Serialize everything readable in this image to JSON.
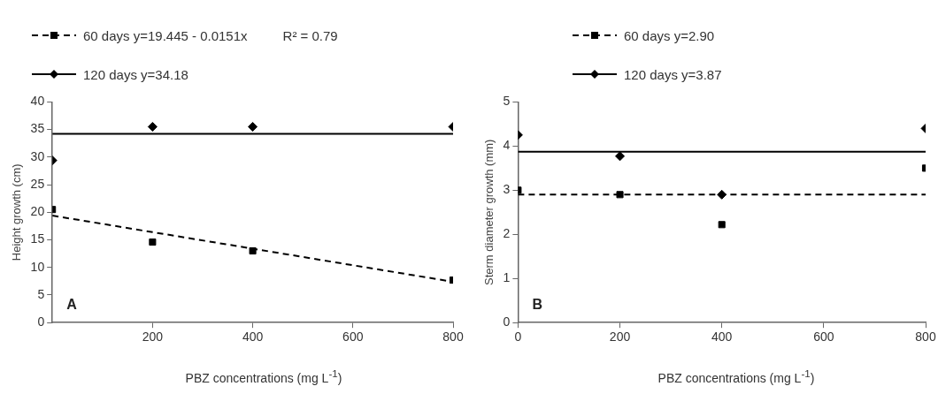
{
  "chart_data": [
    {
      "type": "scatter",
      "xlabel": "PBZ concentrations (mg L$^{-1}$)",
      "ylabel": "Height growth (cm)",
      "x": [
        0,
        200,
        400,
        800
      ],
      "xlim": [
        0,
        800
      ],
      "xticks": [
        200,
        400,
        600,
        800
      ],
      "ylim": [
        0,
        40
      ],
      "yticks": [
        0,
        5,
        10,
        15,
        20,
        25,
        30,
        35,
        40
      ],
      "grid": false,
      "legend": "top left",
      "series": [
        {
          "name": "60 days y=19.445 - 0.0151x",
          "type": "scatter",
          "marker": "square",
          "color": "#000000",
          "values": [
            20.5,
            14.6,
            13.0,
            7.7
          ]
        },
        {
          "type": "line",
          "line_style": "dashed",
          "color": "#000000",
          "values": [
            19.4,
            16.4,
            13.4,
            7.4
          ]
        },
        {
          "name": "120 days y=34.18",
          "type": "scatter",
          "marker": "diamond",
          "color": "#000000",
          "values": [
            29.4,
            35.5,
            35.5,
            35.5
          ]
        },
        {
          "type": "line",
          "line_style": "solid",
          "color": "#000000",
          "values": [
            34.2,
            34.2,
            34.2,
            34.2
          ]
        }
      ],
      "annotations": [
        "R² = 0.79",
        "A"
      ]
    },
    {
      "type": "scatter",
      "xlabel": "PBZ concentrations (mg L$^{-1}$)",
      "ylabel": "Sterm diameter growth (mm)",
      "x": [
        0,
        200,
        400,
        800
      ],
      "xlim": [
        0,
        800
      ],
      "xticks": [
        0,
        200,
        400,
        600,
        800
      ],
      "ylim": [
        0,
        5
      ],
      "yticks": [
        0,
        1,
        2,
        3,
        4,
        5
      ],
      "grid": false,
      "legend": "top left",
      "series": [
        {
          "name": "60 days y=2.90",
          "type": "scatter",
          "marker": "square",
          "color": "#000000",
          "values": [
            3.0,
            2.9,
            2.22,
            3.5
          ]
        },
        {
          "type": "line",
          "line_style": "dashed",
          "color": "#000000",
          "values": [
            2.9,
            2.9,
            2.9,
            2.9
          ]
        },
        {
          "name": "120 days y=3.87",
          "type": "scatter",
          "marker": "diamond",
          "color": "#000000",
          "values": [
            4.25,
            3.77,
            2.9,
            4.4
          ]
        },
        {
          "type": "line",
          "line_style": "solid",
          "color": "#000000",
          "values": [
            3.87,
            3.87,
            3.87,
            3.87
          ]
        }
      ],
      "annotations": [
        "B"
      ]
    }
  ]
}
